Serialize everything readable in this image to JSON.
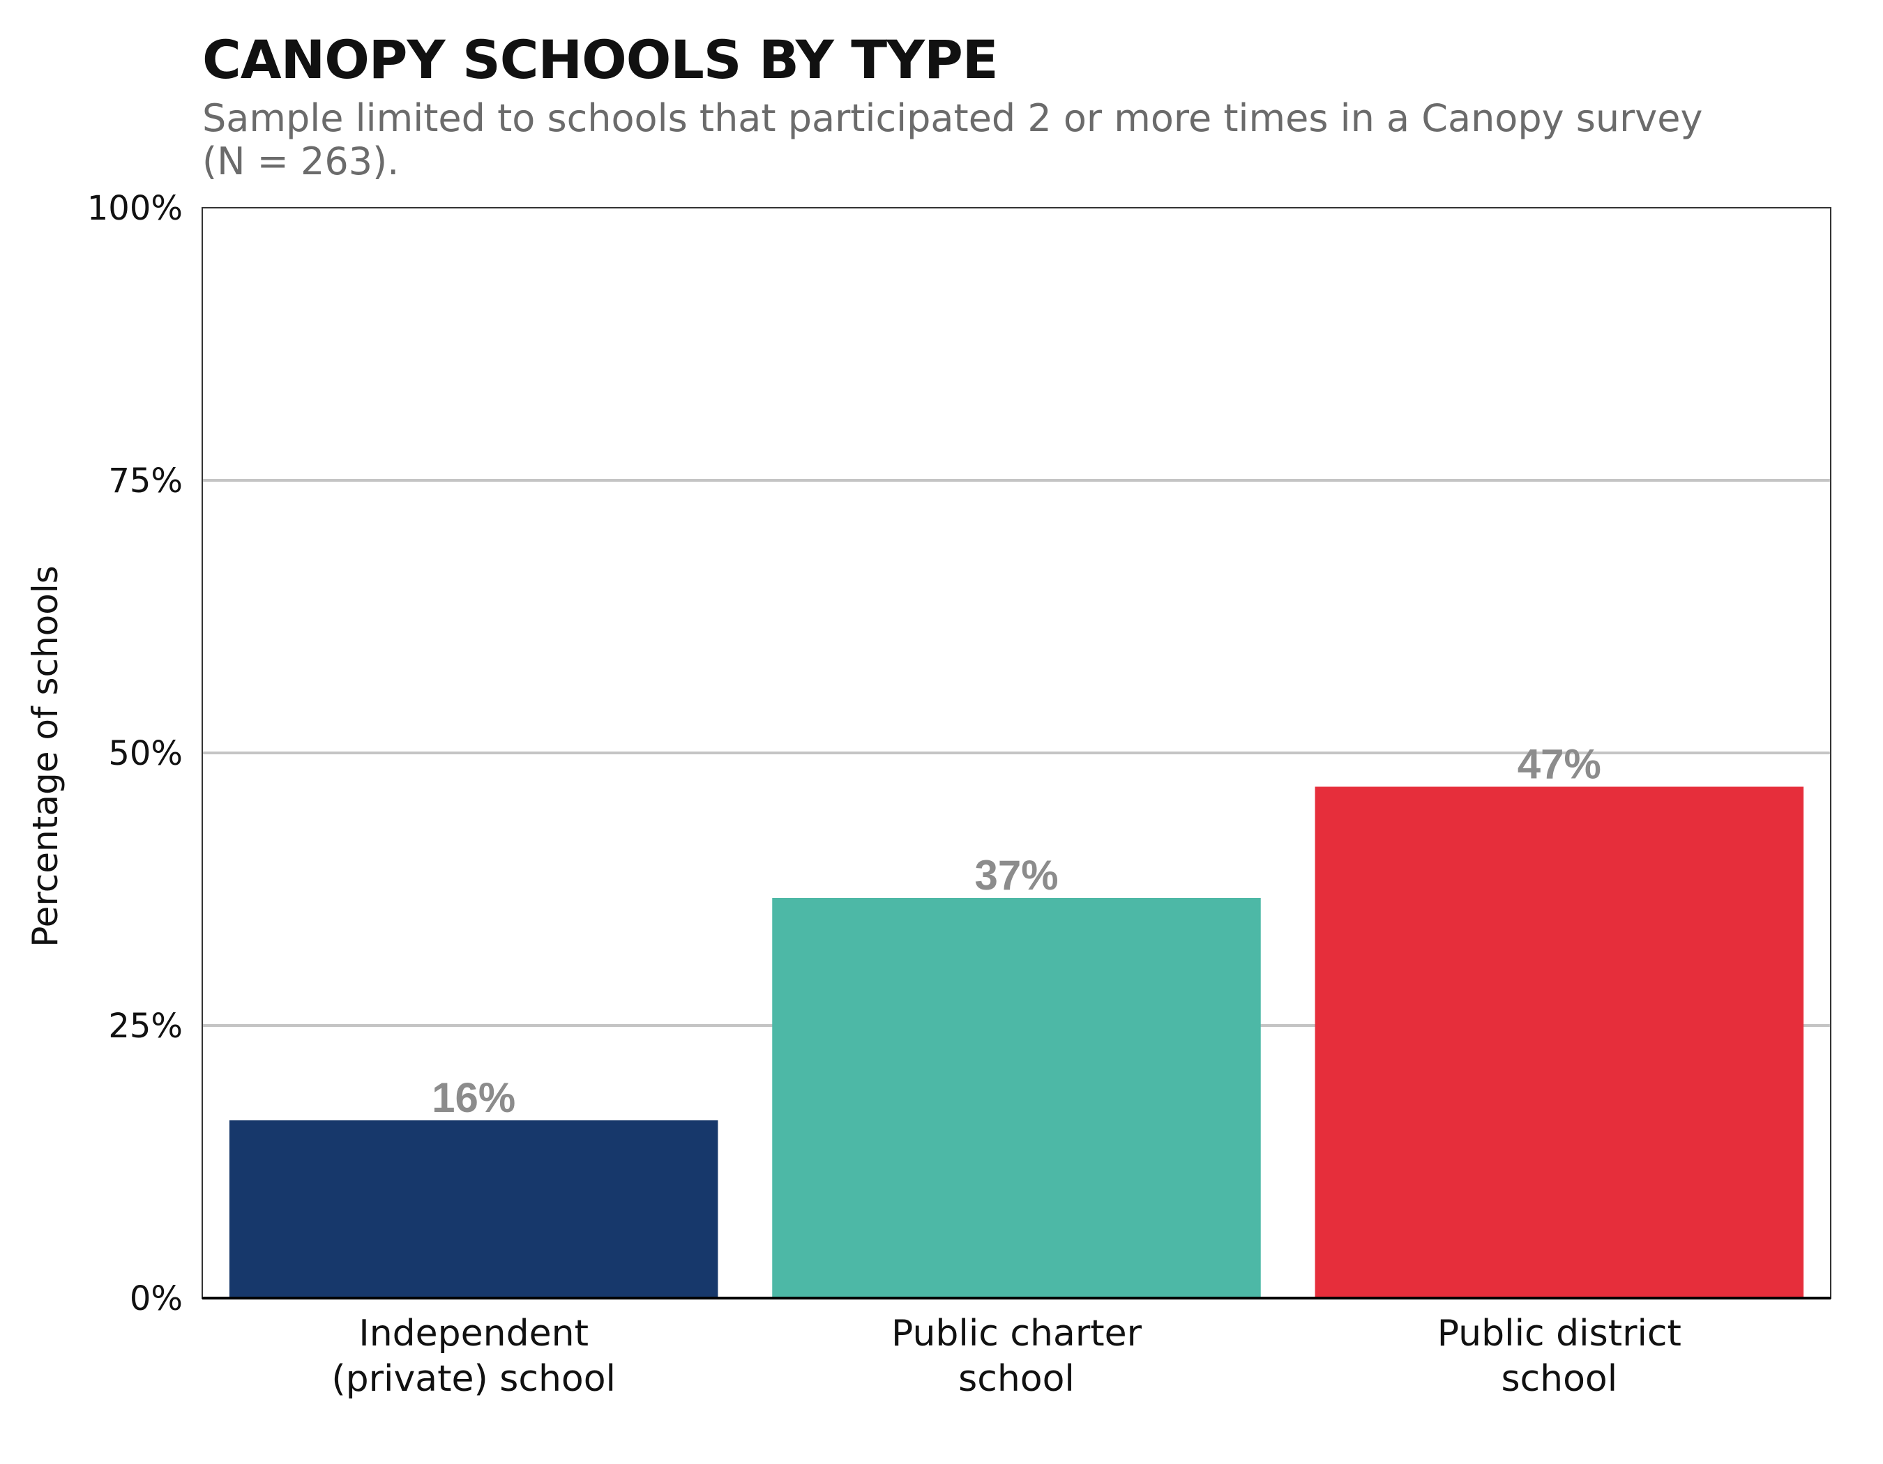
{
  "chart_data": {
    "type": "bar",
    "title": "CANOPY SCHOOLS BY TYPE",
    "subtitle_lines": [
      "Sample limited to schools that participated 2 or more times in a Canopy survey",
      "(N = 263)."
    ],
    "xlabel": "",
    "ylabel": "Percentage of schools",
    "categories": [
      [
        "Independent",
        "(private) school"
      ],
      [
        "Public charter",
        "school"
      ],
      [
        "Public district",
        "school"
      ]
    ],
    "values": [
      16.3,
      36.7,
      46.9
    ],
    "data_labels": [
      "16%",
      "37%",
      "47%"
    ],
    "colors": [
      "#17386b",
      "#4db8a6",
      "#e62e3b"
    ],
    "ylim": [
      0,
      100
    ],
    "yticks": [
      0,
      25,
      50,
      75,
      100
    ],
    "ytick_labels": [
      "0%",
      "25%",
      "50%",
      "75%",
      "100%"
    ],
    "grid": true,
    "legend": "none"
  }
}
